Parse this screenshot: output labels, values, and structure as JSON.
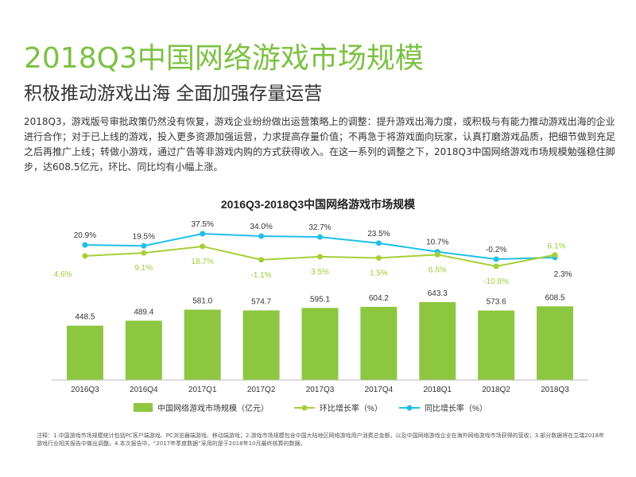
{
  "header": {
    "title": "2018Q3中国网络游戏市场规模",
    "subtitle": "积极推动游戏出海 全面加强存量运营"
  },
  "body": {
    "paragraph": "2018Q3，游戏版号审批政策仍然没有恢复，游戏企业纷纷做出运营策略上的调整：提升游戏出海力度，或积极与有能力推动游戏出海的企业进行合作；对于已上线的游戏，投入更多资源加强运营，力求提高存量价值；不再急于将游戏面向玩家，认真打磨游戏品质，把细节做到充足之后再推广上线；转做小游戏，通过广告等非游戏内购的方式获得收入。在这一系列的调整之下，2018Q3中国网络游戏市场规模勉强稳住脚步，达608.5亿元，环比、同比均有小幅上涨。"
  },
  "chart_data": {
    "type": "bar",
    "title": "2016Q3-2018Q3中国网络游戏市场规模",
    "categories": [
      "2016Q3",
      "2016Q4",
      "2017Q1",
      "2017Q2",
      "2017Q3",
      "2017Q4",
      "2018Q1",
      "2018Q2",
      "2018Q3"
    ],
    "series": [
      {
        "name": "中国网络游戏市场规模（亿元）",
        "type": "bar",
        "color": "#8dc63f",
        "values": [
          448.5,
          489.4,
          581.0,
          574.7,
          595.1,
          604.2,
          643.3,
          573.6,
          608.5
        ],
        "labels": [
          "448.5",
          "489.4",
          "581.0",
          "574.7",
          "595.1",
          "604.2",
          "643.3",
          "573.6",
          "608.5"
        ]
      },
      {
        "name": "环比增长率（%）",
        "type": "line",
        "color": "#a6cf38",
        "values": [
          4.6,
          9.1,
          18.7,
          -1.1,
          3.5,
          1.5,
          6.5,
          -10.8,
          6.1
        ],
        "labels": [
          "4.6%",
          "9.1%",
          "18.7%",
          "-1.1%",
          "3.5%",
          "1.5%",
          "6.5%",
          "-10.8%",
          "6.1%"
        ]
      },
      {
        "name": "同比增长率（%）",
        "type": "line",
        "color": "#1ec0e8",
        "values": [
          20.9,
          19.5,
          37.5,
          34.0,
          32.7,
          23.5,
          10.7,
          -0.2,
          2.3
        ],
        "labels": [
          "20.9%",
          "19.5%",
          "37.5%",
          "34.0%",
          "32.7%",
          "23.5%",
          "10.7%",
          "-0.2%",
          "2.3%"
        ]
      }
    ],
    "legend_position": "bottom",
    "grid": false
  },
  "notes": "注释：1.中国游戏市场规模统计包括PC客户端游戏、PC浏览器端游戏、移动端游戏；2.游戏市场规模包含中国大陆地区网络游戏用户消费总金额，以及中国网络游戏企业在海外网络游戏市场获得的营收；3.部分数据将在艾瑞2018年游戏行业相关报告中做出调整。4.本次报告中，“2017年季度数据”采用的是于2018年10月最终核算的数据。"
}
